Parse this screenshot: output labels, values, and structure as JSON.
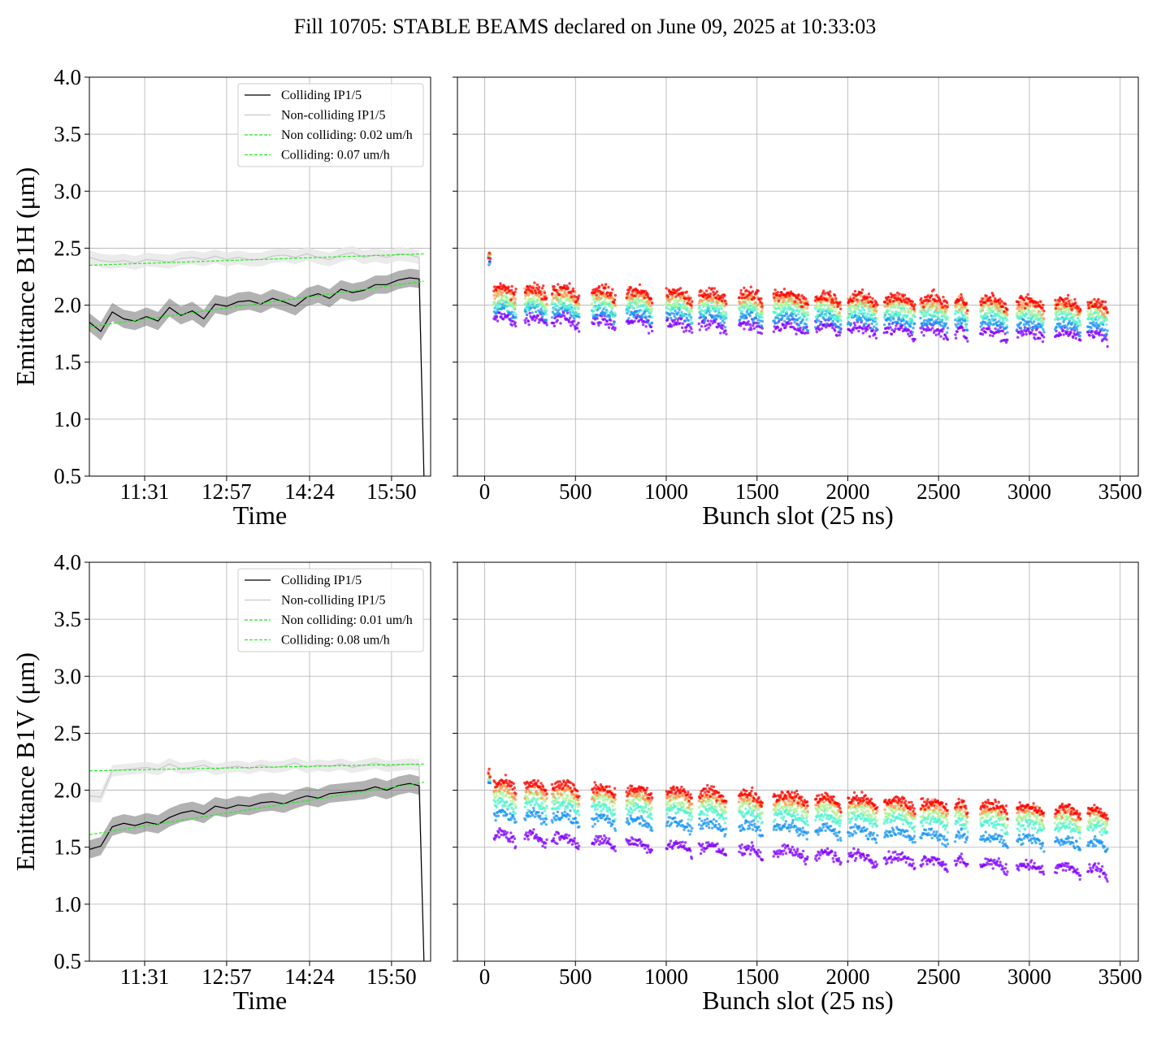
{
  "figure": {
    "title": "Fill 10705: STABLE BEAMS declared on June 09, 2025 at 10:33:03"
  },
  "colors": {
    "colliding_line": "#000000",
    "colliding_band": "#7f7f7f",
    "noncolliding_line": "#c8c8c8",
    "noncolliding_band": "#e6e6e6",
    "fit_line": "#22ee22",
    "grid": "#b0b0b0",
    "bunch_scatter_palette": [
      "#8000ff",
      "#1996f3",
      "#4df3ce",
      "#b2f396",
      "#ff964f",
      "#ff0000"
    ]
  },
  "chart_data": [
    {
      "id": "b1h-time",
      "type": "line",
      "ylabel": "Emittance B1H (μm)",
      "xlabel": "Time",
      "xlim": [
        "10:33",
        "16:31"
      ],
      "ylim": [
        0.5,
        4.0
      ],
      "yticks": [
        "0.5",
        "1.0",
        "1.5",
        "2.0",
        "2.5",
        "3.0",
        "3.5",
        "4.0"
      ],
      "xticks": [
        "11:31",
        "12:57",
        "14:24",
        "15:50"
      ],
      "grid": true,
      "legend_position": "upper-right",
      "legend": [
        "Colliding IP1/5",
        "Non-colliding IP1/5",
        "Non colliding: 0.02 um/h",
        "Colliding: 0.07 um/h"
      ],
      "series": [
        {
          "name": "Colliding IP1/5",
          "x": [
            "10:33",
            "10:45",
            "10:57",
            "11:09",
            "11:21",
            "11:33",
            "11:45",
            "11:57",
            "12:09",
            "12:21",
            "12:33",
            "12:45",
            "12:57",
            "13:09",
            "13:21",
            "13:33",
            "13:45",
            "13:57",
            "14:09",
            "14:21",
            "14:33",
            "14:45",
            "14:57",
            "15:09",
            "15:21",
            "15:33",
            "15:45",
            "15:57",
            "16:09",
            "16:19",
            "16:24"
          ],
          "values": [
            1.85,
            1.77,
            1.94,
            1.88,
            1.86,
            1.9,
            1.86,
            1.98,
            1.91,
            1.95,
            1.88,
            2.01,
            1.99,
            2.03,
            2.04,
            2.01,
            2.06,
            2.03,
            1.99,
            2.07,
            2.1,
            2.06,
            2.14,
            2.11,
            2.13,
            2.18,
            2.18,
            2.22,
            2.24,
            2.23,
            0.5
          ],
          "band": 0.08
        },
        {
          "name": "Non-colliding IP1/5",
          "x": [
            "10:33",
            "10:45",
            "10:57",
            "11:09",
            "11:21",
            "11:33",
            "11:45",
            "11:57",
            "12:09",
            "12:21",
            "12:33",
            "12:45",
            "12:57",
            "13:09",
            "13:21",
            "13:33",
            "13:45",
            "13:57",
            "14:09",
            "14:21",
            "14:33",
            "14:45",
            "14:57",
            "15:09",
            "15:21",
            "15:33",
            "15:45",
            "15:57",
            "16:09",
            "16:19",
            "16:24"
          ],
          "values": [
            2.42,
            2.39,
            2.38,
            2.39,
            2.37,
            2.4,
            2.39,
            2.38,
            2.41,
            2.42,
            2.4,
            2.43,
            2.4,
            2.42,
            2.4,
            2.4,
            2.43,
            2.44,
            2.42,
            2.45,
            2.42,
            2.4,
            2.44,
            2.46,
            2.42,
            2.44,
            2.42,
            2.45,
            2.44,
            2.42,
            0.5
          ],
          "band": 0.06
        },
        {
          "name": "Non colliding: 0.02 um/h",
          "x": [
            "10:33",
            "16:24"
          ],
          "values": [
            2.35,
            2.45
          ]
        },
        {
          "name": "Colliding: 0.07 um/h",
          "x": [
            "10:33",
            "16:24"
          ],
          "values": [
            1.81,
            2.21
          ]
        }
      ]
    },
    {
      "id": "b1h-bunch",
      "type": "scatter",
      "xlabel": "Bunch slot (25 ns)",
      "ylabel": "",
      "xlim": [
        -150,
        3600
      ],
      "ylim": [
        0.5,
        4.0
      ],
      "xticks": [
        0,
        500,
        1000,
        1500,
        2000,
        2500,
        3000,
        3500
      ],
      "grid": true,
      "trains_start": [
        20,
        50,
        220,
        370,
        590,
        780,
        1000,
        1180,
        1400,
        1590,
        1820,
        2000,
        2200,
        2400,
        2590,
        2730,
        2930,
        3140,
        3320
      ],
      "trains_end": [
        30,
        170,
        340,
        520,
        720,
        920,
        1140,
        1330,
        1530,
        1780,
        1960,
        2160,
        2370,
        2550,
        2660,
        2880,
        3080,
        3280,
        3430
      ],
      "series_levels": [
        {
          "name": "",
          "start": 1.88,
          "end": 1.72
        },
        {
          "name": "",
          "start": 1.95,
          "end": 1.8
        },
        {
          "name": "",
          "start": 2.0,
          "end": 1.87
        },
        {
          "name": "",
          "start": 2.05,
          "end": 1.93
        },
        {
          "name": "",
          "start": 2.1,
          "end": 1.97
        },
        {
          "name": "",
          "start": 2.13,
          "end": 2.0
        }
      ],
      "first_train_value": 2.45,
      "spread": 0.08
    },
    {
      "id": "b1v-time",
      "type": "line",
      "ylabel": "Emittance B1V (μm)",
      "xlabel": "Time",
      "xlim": [
        "10:33",
        "16:31"
      ],
      "ylim": [
        0.5,
        4.0
      ],
      "yticks": [
        "0.5",
        "1.0",
        "1.5",
        "2.0",
        "2.5",
        "3.0",
        "3.5",
        "4.0"
      ],
      "xticks": [
        "11:31",
        "12:57",
        "14:24",
        "15:50"
      ],
      "grid": true,
      "legend_position": "upper-right",
      "legend": [
        "Colliding IP1/5",
        "Non-colliding IP1/5",
        "Non colliding: 0.01 um/h",
        "Colliding: 0.08 um/h"
      ],
      "series": [
        {
          "name": "Colliding IP1/5",
          "x": [
            "10:33",
            "10:45",
            "10:57",
            "11:09",
            "11:21",
            "11:33",
            "11:45",
            "11:57",
            "12:09",
            "12:21",
            "12:33",
            "12:45",
            "12:57",
            "13:09",
            "13:21",
            "13:33",
            "13:45",
            "13:57",
            "14:09",
            "14:21",
            "14:33",
            "14:45",
            "14:57",
            "15:09",
            "15:21",
            "15:33",
            "15:45",
            "15:57",
            "16:09",
            "16:19",
            "16:24"
          ],
          "values": [
            1.48,
            1.51,
            1.68,
            1.71,
            1.69,
            1.72,
            1.7,
            1.76,
            1.8,
            1.82,
            1.79,
            1.86,
            1.84,
            1.87,
            1.86,
            1.89,
            1.9,
            1.88,
            1.92,
            1.95,
            1.93,
            1.97,
            1.98,
            1.99,
            2.0,
            2.03,
            2.0,
            2.04,
            2.06,
            2.04,
            0.5
          ],
          "band": 0.08
        },
        {
          "name": "Non-colliding IP1/5",
          "x": [
            "10:33",
            "10:45",
            "10:57",
            "11:09",
            "11:21",
            "11:33",
            "11:45",
            "11:57",
            "12:09",
            "12:21",
            "12:33",
            "12:45",
            "12:57",
            "13:09",
            "13:21",
            "13:33",
            "13:45",
            "13:57",
            "14:09",
            "14:21",
            "14:33",
            "14:45",
            "14:57",
            "15:09",
            "15:21",
            "15:33",
            "15:45",
            "15:57",
            "16:09",
            "16:19",
            "16:24"
          ],
          "values": [
            1.95,
            1.94,
            2.17,
            2.18,
            2.19,
            2.2,
            2.18,
            2.23,
            2.19,
            2.2,
            2.22,
            2.18,
            2.2,
            2.21,
            2.19,
            2.22,
            2.2,
            2.21,
            2.24,
            2.2,
            2.22,
            2.21,
            2.23,
            2.2,
            2.22,
            2.24,
            2.21,
            2.22,
            2.23,
            2.22,
            0.5
          ],
          "band": 0.05
        },
        {
          "name": "Non colliding: 0.01 um/h",
          "x": [
            "10:33",
            "16:24"
          ],
          "values": [
            2.17,
            2.23
          ]
        },
        {
          "name": "Colliding: 0.08 um/h",
          "x": [
            "10:33",
            "16:24"
          ],
          "values": [
            1.61,
            2.07
          ]
        }
      ]
    },
    {
      "id": "b1v-bunch",
      "type": "scatter",
      "xlabel": "Bunch slot (25 ns)",
      "ylabel": "",
      "xlim": [
        -150,
        3600
      ],
      "ylim": [
        0.5,
        4.0
      ],
      "xticks": [
        0,
        500,
        1000,
        1500,
        2000,
        2500,
        3000,
        3500
      ],
      "grid": true,
      "trains_start": [
        20,
        50,
        220,
        370,
        590,
        780,
        1000,
        1180,
        1400,
        1590,
        1820,
        2000,
        2200,
        2400,
        2590,
        2730,
        2930,
        3140,
        3320
      ],
      "trains_end": [
        30,
        170,
        340,
        520,
        720,
        920,
        1140,
        1330,
        1530,
        1780,
        1960,
        2160,
        2370,
        2550,
        2660,
        2880,
        3080,
        3280,
        3430
      ],
      "series_levels": [
        {
          "name": "",
          "start": 1.6,
          "end": 1.28
        },
        {
          "name": "",
          "start": 1.78,
          "end": 1.52
        },
        {
          "name": "",
          "start": 1.88,
          "end": 1.65
        },
        {
          "name": "",
          "start": 1.95,
          "end": 1.72
        },
        {
          "name": "",
          "start": 2.0,
          "end": 1.78
        },
        {
          "name": "",
          "start": 2.05,
          "end": 1.8
        }
      ],
      "first_train_value": 2.15,
      "spread": 0.07
    }
  ]
}
